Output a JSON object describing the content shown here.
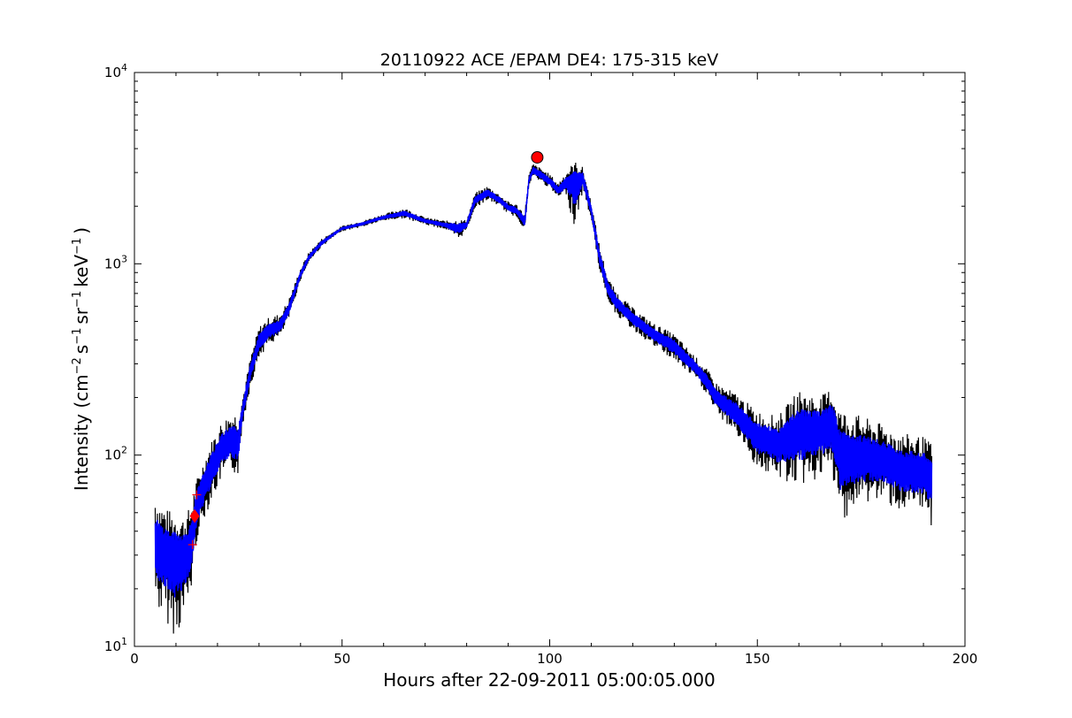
{
  "chart_data": {
    "type": "line",
    "title": "20110922 ACE /EPAM DE4: 175-315 keV",
    "xlabel": "Hours after 22-09-2011 05:00:05.000",
    "ylabel_parts": [
      "Intensity (cm",
      "−2",
      "s",
      "−1",
      "sr",
      "−1",
      "keV",
      "−1",
      ")"
    ],
    "xlim": [
      0,
      200
    ],
    "ylim": [
      10,
      10000
    ],
    "yscale": "log",
    "grid": false,
    "x_ticks": [
      0,
      50,
      100,
      150,
      200
    ],
    "x_tick_labels": [
      "0",
      "50",
      "100",
      "150",
      "200"
    ],
    "y_ticks": [
      10,
      100,
      1000,
      10000
    ],
    "y_tick_labels": [
      {
        "base": "10",
        "exp": "1"
      },
      {
        "base": "10",
        "exp": "2"
      },
      {
        "base": "10",
        "exp": "3"
      },
      {
        "base": "10",
        "exp": "4"
      }
    ],
    "colors": {
      "raw": "#000000",
      "smoothed": "#0000ff",
      "marker": "#ff0000"
    },
    "series_raw_upper": {
      "x": [
        5,
        6,
        8,
        10,
        12,
        13.5,
        15,
        17,
        19,
        21,
        23,
        25,
        26,
        28,
        30,
        32,
        35,
        37,
        40,
        42,
        45,
        48,
        50,
        55,
        60,
        65,
        70,
        75,
        78,
        80,
        82,
        85,
        88,
        90,
        92,
        94,
        95,
        96,
        98,
        100,
        102,
        104,
        106,
        108,
        110,
        112,
        114,
        116,
        120,
        125,
        130,
        135,
        138,
        140,
        145,
        150,
        155,
        160,
        165,
        168,
        170,
        175,
        180,
        185,
        190,
        192
      ],
      "y": [
        65,
        58,
        52,
        50,
        47,
        55,
        75,
        98,
        125,
        150,
        165,
        170,
        200,
        330,
        470,
        520,
        550,
        640,
        950,
        1150,
        1350,
        1480,
        1580,
        1680,
        1820,
        1960,
        1750,
        1680,
        1700,
        1700,
        2350,
        2550,
        2300,
        2120,
        2050,
        1850,
        2950,
        3350,
        3150,
        2950,
        2650,
        3050,
        3450,
        3200,
        2100,
        1250,
        850,
        720,
        590,
        490,
        430,
        330,
        280,
        240,
        210,
        170,
        160,
        220,
        200,
        230,
        175,
        160,
        145,
        130,
        125,
        115
      ]
    },
    "series_raw_lower": {
      "x": [
        5,
        6,
        8,
        10,
        12,
        13.5,
        15,
        17,
        19,
        21,
        23,
        25,
        26,
        28,
        30,
        32,
        35,
        37,
        40,
        42,
        45,
        48,
        50,
        55,
        60,
        65,
        70,
        75,
        78,
        80,
        82,
        85,
        88,
        90,
        92,
        94,
        95,
        96,
        98,
        100,
        102,
        104,
        106,
        108,
        110,
        112,
        114,
        116,
        120,
        125,
        130,
        135,
        138,
        140,
        145,
        150,
        155,
        160,
        165,
        168,
        170,
        175,
        180,
        185,
        190,
        192
      ],
      "y": [
        17,
        15,
        13,
        11,
        14,
        18,
        35,
        48,
        60,
        75,
        82,
        78,
        140,
        230,
        320,
        370,
        410,
        500,
        820,
        1020,
        1220,
        1380,
        1480,
        1560,
        1680,
        1730,
        1600,
        1510,
        1320,
        1500,
        1950,
        2150,
        2000,
        1820,
        1750,
        1500,
        2550,
        2850,
        2650,
        2480,
        2200,
        2300,
        1500,
        2400,
        1700,
        920,
        650,
        540,
        450,
        370,
        310,
        250,
        205,
        165,
        128,
        85,
        75,
        68,
        75,
        78,
        45,
        55,
        58,
        50,
        50,
        42
      ]
    },
    "series_smoothed": {
      "x": [
        5,
        6,
        8,
        10,
        12,
        13.5,
        15,
        17,
        19,
        21,
        23,
        25,
        26,
        28,
        30,
        32,
        35,
        37,
        40,
        42,
        45,
        48,
        50,
        55,
        60,
        65,
        70,
        75,
        78,
        80,
        82,
        85,
        88,
        90,
        92,
        94,
        95,
        96,
        98,
        100,
        102,
        104,
        106,
        108,
        110,
        112,
        114,
        116,
        120,
        125,
        130,
        135,
        138,
        140,
        145,
        150,
        155,
        160,
        165,
        168,
        170,
        175,
        180,
        185,
        190,
        192
      ],
      "y": [
        35,
        33,
        31,
        30,
        31,
        34,
        55,
        72,
        90,
        110,
        120,
        115,
        170,
        280,
        390,
        440,
        475,
        570,
        880,
        1080,
        1280,
        1430,
        1530,
        1620,
        1750,
        1830,
        1680,
        1590,
        1550,
        1600,
        2150,
        2350,
        2150,
        1970,
        1900,
        1650,
        2750,
        3100,
        2900,
        2700,
        2420,
        2680,
        2700,
        2800,
        1900,
        1080,
        750,
        630,
        520,
        430,
        370,
        290,
        240,
        200,
        165,
        125,
        115,
        135,
        140,
        145,
        100,
        100,
        95,
        85,
        82,
        78
      ]
    },
    "markers": [
      {
        "shape": "circle",
        "x": 97,
        "y": 3600
      },
      {
        "shape": "diamond",
        "x": 14.5,
        "y": 48
      },
      {
        "shape": "plus",
        "x": 15,
        "y": 62
      },
      {
        "shape": "plus",
        "x": 14,
        "y": 34
      }
    ]
  }
}
